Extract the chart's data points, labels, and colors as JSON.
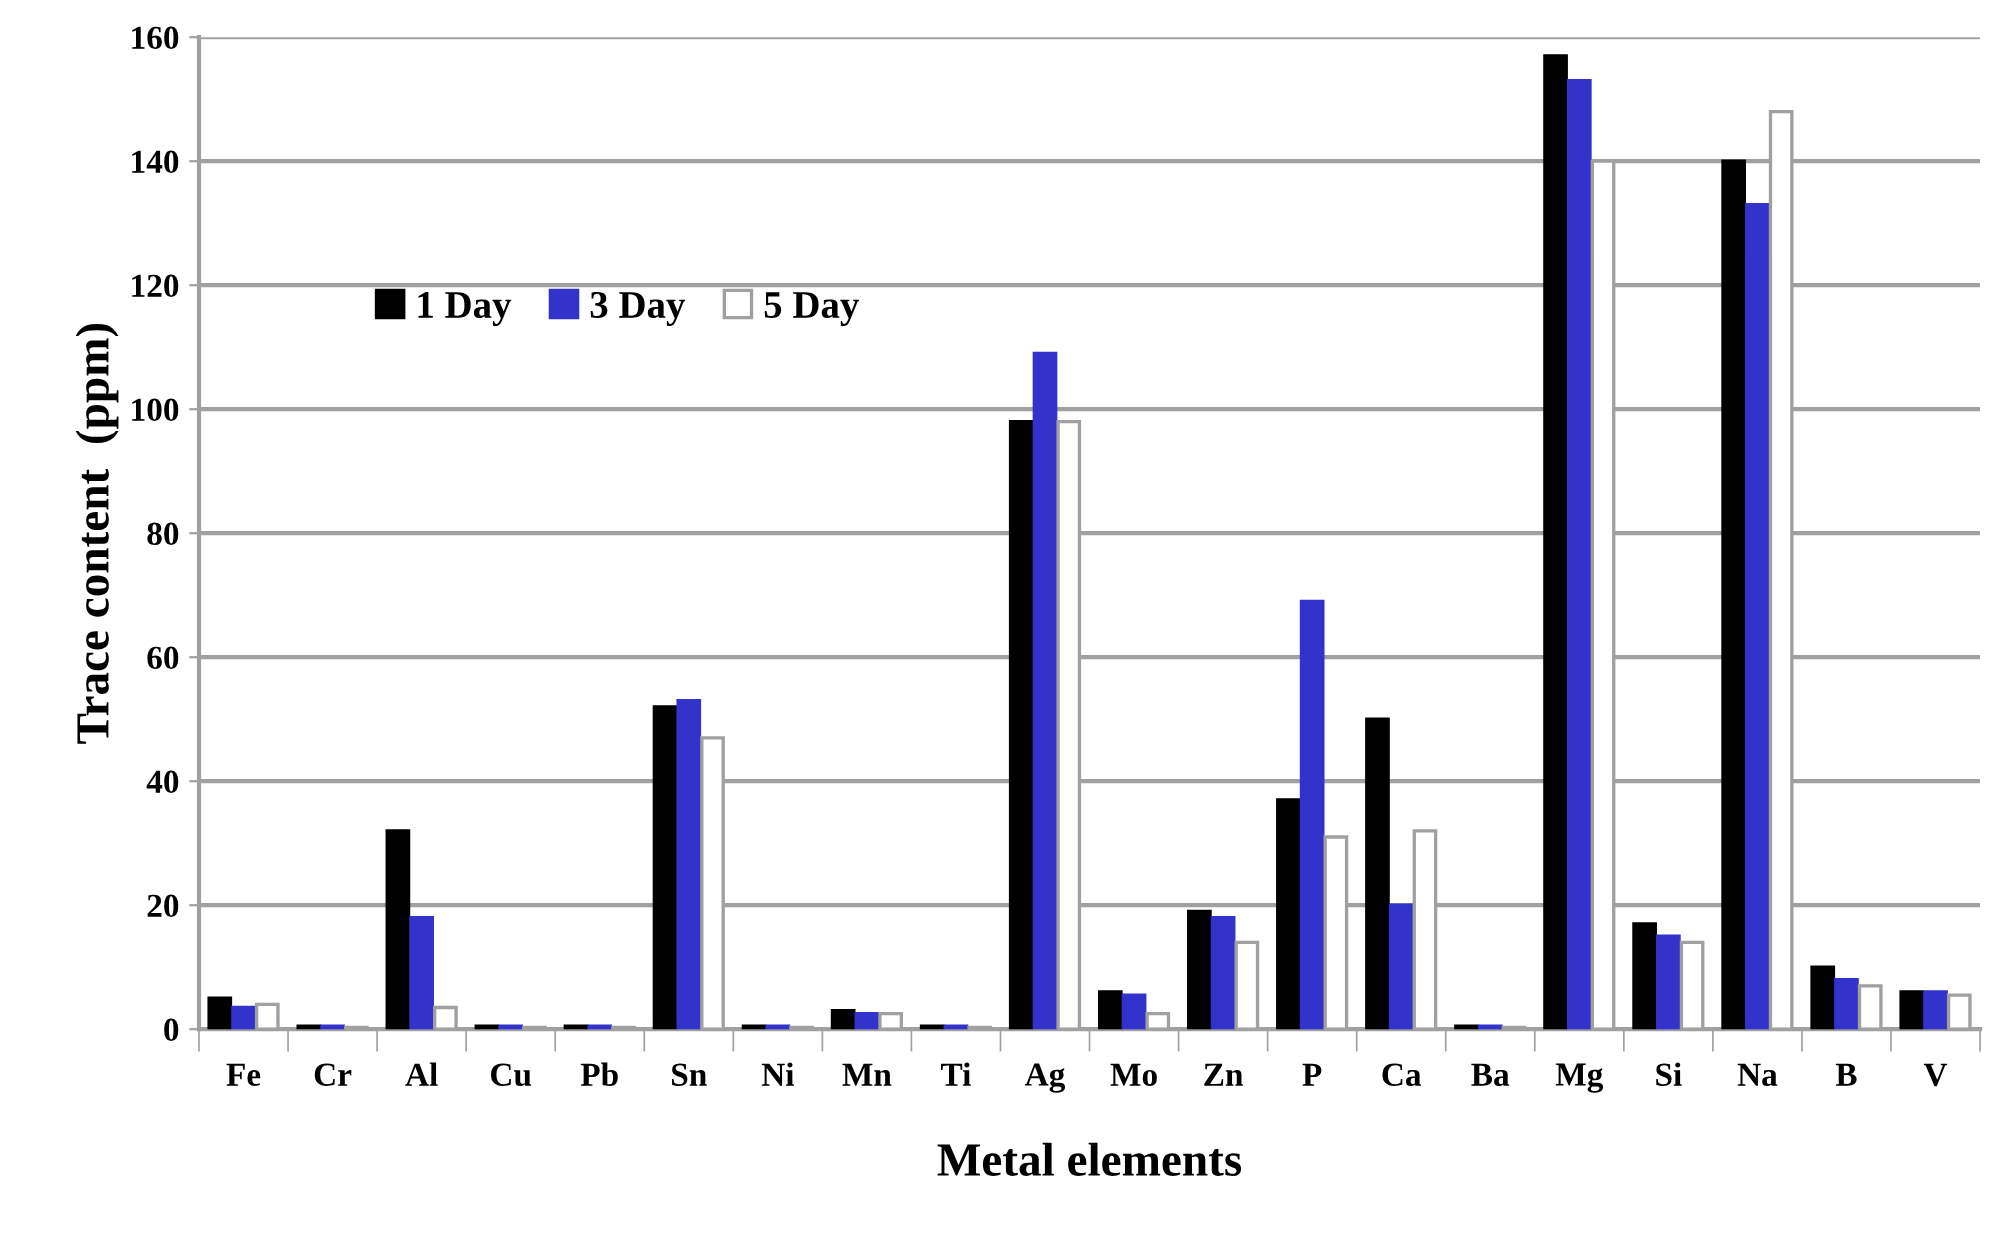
{
  "chart_data": {
    "type": "bar",
    "xlabel": "Metal elements",
    "ylabel": "Trace content  (ppm)",
    "categories": [
      "Fe",
      "Cr",
      "Al",
      "Cu",
      "Pb",
      "Sn",
      "Ni",
      "Mn",
      "Ti",
      "Ag",
      "Mo",
      "Zn",
      "P",
      "Ca",
      "Ba",
      "Mg",
      "Si",
      "Na",
      "B",
      "V"
    ],
    "series": [
      {
        "name": "1 Day",
        "color": "#000000",
        "values": [
          5,
          0.5,
          32,
          0.5,
          0.5,
          52,
          0.5,
          3,
          0.5,
          98,
          6,
          19,
          37,
          50,
          0.5,
          157,
          17,
          140,
          10,
          6
        ]
      },
      {
        "name": "3 Day",
        "color": "#3333cc",
        "values": [
          3.5,
          0.5,
          18,
          0.5,
          0.5,
          53,
          0.5,
          2.5,
          0.5,
          109,
          5.5,
          18,
          69,
          20,
          0.5,
          153,
          15,
          133,
          8,
          6
        ]
      },
      {
        "name": "5 Day",
        "color": "#ffffff",
        "values": [
          4,
          0.3,
          3.5,
          0.3,
          0.3,
          47,
          0.3,
          2.5,
          0.3,
          98,
          2.5,
          14,
          31,
          32,
          0.3,
          140,
          14,
          148,
          7,
          5.5
        ]
      }
    ],
    "ylim": [
      0,
      160
    ],
    "yticks": [
      0,
      20,
      40,
      60,
      80,
      100,
      120,
      140,
      160
    ],
    "grid": "y",
    "legend": "top left"
  }
}
